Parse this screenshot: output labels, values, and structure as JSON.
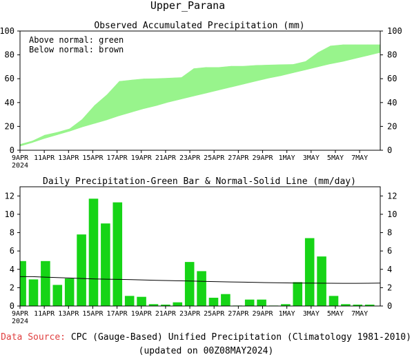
{
  "title": "Upper_Parana",
  "chart_data": [
    {
      "type": "area",
      "title": "Observed Accumulated Precipitation (mm)",
      "legend_lines": [
        "Above normal: green",
        "Below normal: brown"
      ],
      "legend_position": "top-left",
      "ylim": [
        0,
        100
      ],
      "yticks": [
        0,
        20,
        40,
        60,
        80,
        100
      ],
      "x_tick_labels": [
        "9APR",
        "11APR",
        "13APR",
        "15APR",
        "17APR",
        "19APR",
        "21APR",
        "23APR",
        "25APR",
        "27APR",
        "29APR",
        "1MAY",
        "3MAY",
        "5MAY",
        "7MAY"
      ],
      "x_year_label": "2024",
      "days": 30,
      "observed": [
        4.9,
        7.8,
        12.7,
        15.0,
        18.0,
        25.8,
        37.5,
        46.5,
        57.8,
        58.9,
        59.9,
        60.1,
        60.5,
        61.0,
        68.5,
        69.5,
        69.5,
        70.5,
        70.5,
        71.2,
        71.5,
        71.8,
        72.0,
        74.5,
        82.0,
        87.5,
        88.5,
        88.5,
        88.5,
        88.5
      ],
      "normal": [
        3.5,
        6.5,
        10.0,
        13.0,
        16.0,
        19.5,
        22.5,
        25.5,
        29.0,
        32.0,
        35.0,
        37.5,
        40.5,
        43.0,
        45.5,
        48.0,
        50.5,
        53.0,
        55.5,
        58.0,
        60.5,
        62.5,
        65.0,
        67.5,
        70.0,
        72.5,
        74.5,
        77.0,
        79.5,
        82.0
      ]
    },
    {
      "type": "bar",
      "title": "Daily Precipitation-Green Bar & Normal-Solid Line (mm/day)",
      "ylim": [
        0,
        13
      ],
      "yticks": [
        0,
        2,
        4,
        6,
        8,
        10,
        12
      ],
      "x_tick_labels": [
        "9APR",
        "11APR",
        "13APR",
        "15APR",
        "17APR",
        "19APR",
        "21APR",
        "23APR",
        "25APR",
        "27APR",
        "29APR",
        "1MAY",
        "3MAY",
        "5MAY",
        "7MAY"
      ],
      "x_year_label": "2024",
      "values": [
        4.9,
        2.9,
        4.9,
        2.3,
        3.0,
        7.8,
        11.7,
        9.0,
        11.3,
        1.1,
        1.0,
        0.2,
        0.15,
        0.4,
        4.8,
        3.8,
        0.9,
        1.3,
        0.05,
        0.7,
        0.7,
        0.05,
        0.2,
        2.6,
        7.4,
        5.4,
        1.1,
        0.2,
        0.15,
        0.15
      ],
      "normal_line": [
        3.2,
        3.2,
        3.15,
        3.1,
        3.05,
        3.0,
        2.95,
        2.92,
        2.9,
        2.87,
        2.84,
        2.8,
        2.77,
        2.74,
        2.71,
        2.68,
        2.65,
        2.62,
        2.6,
        2.57,
        2.55,
        2.53,
        2.51,
        2.5,
        2.49,
        2.48,
        2.47,
        2.47,
        2.48,
        2.5
      ]
    }
  ],
  "footer": {
    "source_label": "Data Source:",
    "source_text": "CPC (Gauge-Based) Unified Precipitation (Climatology 1981-2010)",
    "updated": "(updated on 00Z08MAY2024)"
  },
  "colors": {
    "accum_fill": "#98f48c",
    "bar_fill": "#16d416",
    "normal_line": "#000000",
    "source_label": "#e04040"
  }
}
